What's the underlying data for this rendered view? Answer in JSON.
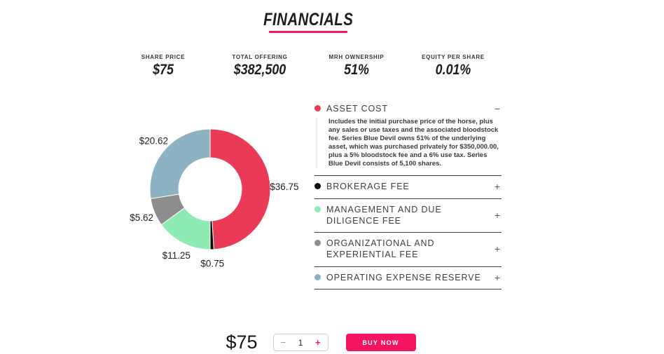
{
  "accent_color": "#F5155F",
  "header": {
    "title": "FINANCIALS"
  },
  "stats": [
    {
      "label": "SHARE PRICE",
      "value": "$75"
    },
    {
      "label": "TOTAL OFFERING",
      "value": "$382,500"
    },
    {
      "label": "MRH OWNERSHIP",
      "value": "51%"
    },
    {
      "label": "EQUITY PER SHARE",
      "value": "0.01%"
    }
  ],
  "chart_data": {
    "type": "pie",
    "subtype": "donut",
    "title": "",
    "total": 75,
    "unit": "$ per share",
    "start_angle_deg": 0,
    "direction": "clockwise",
    "inner_radius_ratio": 0.52,
    "slices": [
      {
        "label": "Asset Cost",
        "value": 36.75,
        "display": "$36.75",
        "color": "#EB3A57"
      },
      {
        "label": "Brokerage Fee",
        "value": 0.75,
        "display": "$0.75",
        "color": "#0D0D0D"
      },
      {
        "label": "Management and Due Diligence Fee",
        "value": 11.25,
        "display": "$11.25",
        "color": "#8FEBB4"
      },
      {
        "label": "Organizational and Experiential Fee",
        "value": 5.62,
        "display": "$5.62",
        "color": "#8D8D8D"
      },
      {
        "label": "Operating Expense Reserve",
        "value": 20.62,
        "display": "$20.62",
        "color": "#8CB2C4"
      }
    ]
  },
  "accordion": {
    "items": [
      {
        "label": "ASSET COST",
        "dot_color": "#EB3A57",
        "toggle": "−",
        "expanded": true,
        "description": "Includes the initial purchase price of the horse, plus any sales or use taxes and the associated bloodstock fee. Series Blue Devil owns 51% of the underlying asset, which was purchased privately for $350,000.00, plus a 5% bloodstock fee and a 6% use tax. Series Blue Devil consists of 5,100 shares."
      },
      {
        "label": "BROKERAGE FEE",
        "dot_color": "#0D0D0D",
        "toggle": "+",
        "expanded": false,
        "description": ""
      },
      {
        "label": "MANAGEMENT AND DUE DILIGENCE FEE",
        "dot_color": "#8FEBB4",
        "toggle": "+",
        "expanded": false,
        "description": ""
      },
      {
        "label": "ORGANIZATIONAL AND EXPERIENTIAL FEE",
        "dot_color": "#8D8D8D",
        "toggle": "+",
        "expanded": false,
        "description": ""
      },
      {
        "label": "OPERATING EXPENSE RESERVE",
        "dot_color": "#8CB2C4",
        "toggle": "+",
        "expanded": false,
        "description": ""
      }
    ]
  },
  "buy": {
    "price": "$75",
    "quantity": "1",
    "decrement_label": "−",
    "increment_label": "+",
    "buy_button_label": "BUY NOW"
  }
}
